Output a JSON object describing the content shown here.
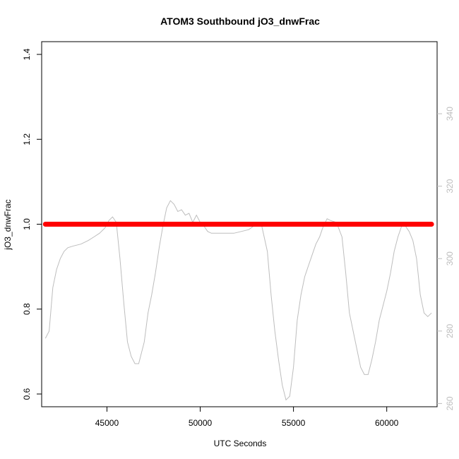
{
  "chart_data": {
    "type": "line",
    "title": "ATOM3 Southbound jO3_dnwFrac",
    "xlabel": "UTC Seconds",
    "ylabel": "jO3_dnwFrac",
    "xlim": [
      41500,
      62700
    ],
    "ylim": [
      0.57,
      1.43
    ],
    "x_ticks": [
      45000,
      50000,
      55000,
      60000
    ],
    "y_ticks": [
      0.6,
      0.8,
      1.0,
      1.2,
      1.4
    ],
    "y2_ticks": [
      260,
      280,
      300,
      320,
      340
    ],
    "y2lim": [
      259.1,
      359.9
    ],
    "grid": false,
    "series": [
      {
        "role": "primary",
        "axis": "left",
        "color": "#ff0000",
        "x": [
          41700,
          62400
        ],
        "y": [
          1.0,
          1.0
        ]
      },
      {
        "role": "secondary",
        "axis": "right",
        "color": "#bdbdbd",
        "x": [
          41700,
          41900,
          42100,
          42300,
          42500,
          42700,
          42900,
          43200,
          43600,
          44000,
          44300,
          44600,
          44900,
          45100,
          45300,
          45500,
          45700,
          45900,
          46100,
          46300,
          46500,
          46700,
          47000,
          47200,
          47400,
          47600,
          47800,
          48000,
          48200,
          48400,
          48600,
          48800,
          49000,
          49200,
          49400,
          49600,
          49800,
          50000,
          50200,
          50400,
          50600,
          50800,
          51000,
          51400,
          51800,
          52200,
          52600,
          53000,
          53300,
          53600,
          53800,
          54000,
          54200,
          54400,
          54600,
          54800,
          55000,
          55200,
          55400,
          55600,
          55800,
          56000,
          56200,
          56400,
          56600,
          56800,
          57000,
          57300,
          57600,
          57800,
          58000,
          58200,
          58400,
          58600,
          58800,
          59000,
          59200,
          59400,
          59600,
          59800,
          60000,
          60200,
          60400,
          60600,
          60800,
          61000,
          61200,
          61400,
          61600,
          61800,
          62000,
          62200,
          62400
        ],
        "y": [
          278,
          280,
          292,
          297,
          300,
          302,
          303,
          303.5,
          304,
          305,
          306,
          307,
          308.5,
          310.5,
          311.5,
          310,
          300,
          288,
          277,
          273,
          271,
          271,
          277,
          285,
          290,
          296,
          303,
          309,
          314,
          316,
          315,
          313,
          313.5,
          312,
          312.5,
          310,
          312,
          310,
          309,
          307.5,
          307,
          307,
          307,
          307,
          307,
          307.5,
          308,
          309.5,
          309,
          302,
          290,
          280,
          272,
          265,
          261,
          262,
          270,
          283,
          290,
          295,
          298,
          301,
          304,
          306,
          309,
          311,
          310.5,
          310,
          306,
          296,
          285,
          280,
          275,
          270,
          268,
          268,
          272,
          277,
          283,
          287,
          291,
          296,
          302,
          306,
          309,
          309,
          307.5,
          305,
          300,
          290,
          285,
          284,
          285
        ]
      }
    ]
  }
}
